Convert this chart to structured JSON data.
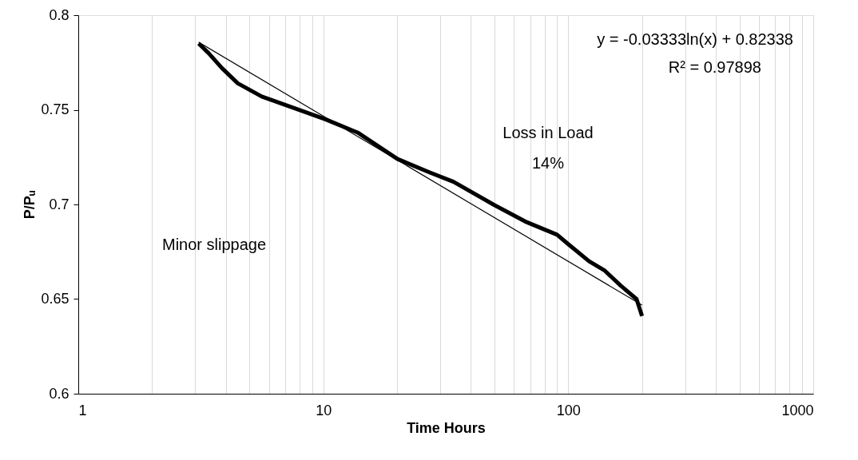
{
  "chart_data": {
    "type": "line",
    "xlabel": "Time Hours",
    "ylabel": "P/Pᵤ",
    "log": "x",
    "xlim": [
      1,
      1000
    ],
    "ylim": [
      0.6,
      0.8
    ],
    "xticks": [
      1,
      {
        "value": 2,
        "label": null
      },
      {
        "value": 3,
        "label": null
      },
      {
        "value": 4,
        "label": null
      },
      {
        "value": 5,
        "label": null
      },
      {
        "value": 6,
        "label": null
      },
      {
        "value": 7,
        "label": null
      },
      {
        "value": 8,
        "label": null
      },
      {
        "value": 9,
        "label": null
      },
      10,
      {
        "value": 20,
        "label": null
      },
      {
        "value": 30,
        "label": null
      },
      {
        "value": 40,
        "label": null
      },
      {
        "value": 50,
        "label": null
      },
      {
        "value": 60,
        "label": null
      },
      {
        "value": 70,
        "label": null
      },
      {
        "value": 80,
        "label": null
      },
      {
        "value": 90,
        "label": null
      },
      100,
      {
        "value": 200,
        "label": null
      },
      {
        "value": 300,
        "label": null
      },
      {
        "value": 400,
        "label": null
      },
      {
        "value": 500,
        "label": null
      },
      {
        "value": 600,
        "label": null
      },
      {
        "value": 700,
        "label": null
      },
      {
        "value": 800,
        "label": null
      },
      {
        "value": 900,
        "label": null
      },
      1000
    ],
    "yticks": [
      0.6,
      0.65,
      0.7,
      0.75,
      0.8
    ],
    "grid": "x",
    "marker": "none",
    "series": [
      {
        "color": "#000000",
        "line_style": "solid",
        "x": [
          3.1,
          3.4,
          3.86,
          4.48,
          5.61,
          7.57,
          10.2,
          13.8,
          20.1,
          27.1,
          34,
          49.4,
          66.7,
          90,
          100,
          121.6,
          141,
          164,
          190,
          200
        ],
        "values": [
          0.785,
          0.78,
          0.772,
          0.764,
          0.757,
          0.751,
          0.745,
          0.738,
          0.724,
          0.717,
          0.712,
          0.7,
          0.691,
          0.684,
          0.679,
          0.67,
          0.665,
          0.657,
          0.65,
          0.641
        ]
      },
      {
        "color": "#000000",
        "line_style": "solid",
        "x": [
          3.1,
          200
        ],
        "values": [
          0.7857,
          0.6468
        ]
      }
    ],
    "annotations": [
      "y = -0.03333ln(x) + 0.82338",
      "R² = 0.97898",
      "Loss in Load",
      "14%",
      "Minor slippage"
    ]
  }
}
